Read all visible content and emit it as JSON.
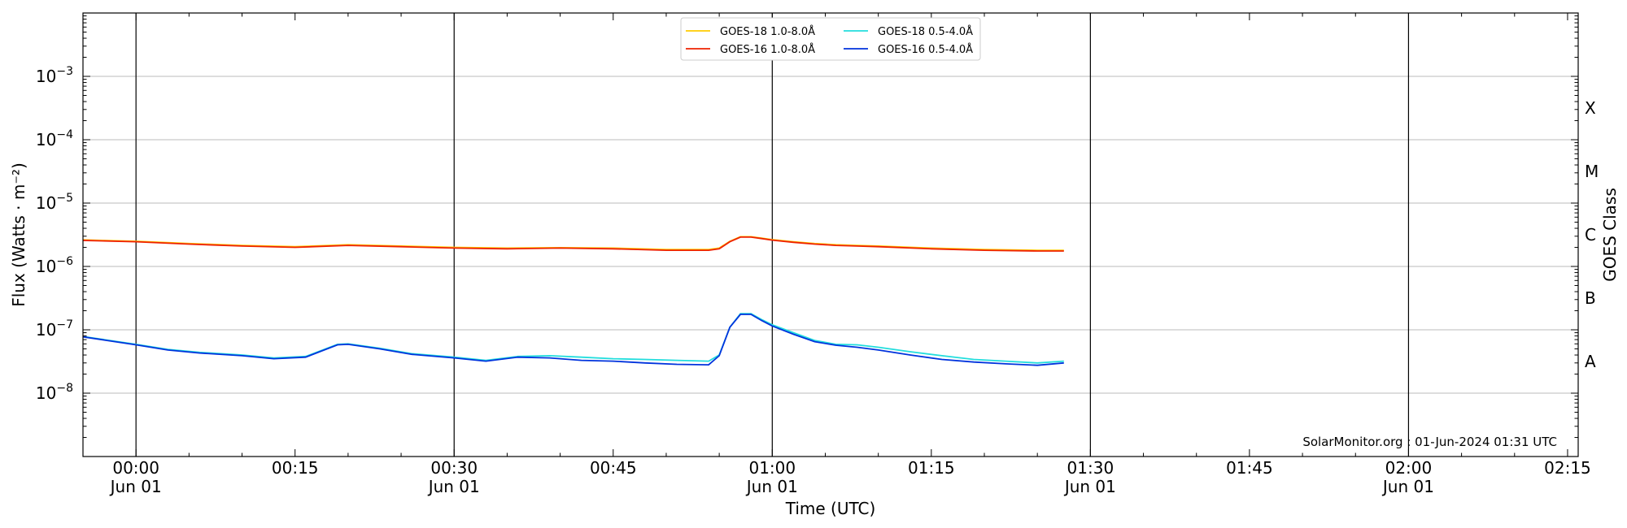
{
  "chart_data": {
    "type": "line",
    "title": "",
    "xlabel": "Time (UTC)",
    "ylabel": "Flux (Watts · m⁻²)",
    "y2label": "GOES Class",
    "y_scale": "log",
    "ylim": [
      1e-09,
      0.01
    ],
    "xlim": [
      "2024-06-01 23:55 (May 31)",
      "2024-06-01 02:16"
    ],
    "xlim_minutes": [
      -5,
      136
    ],
    "grid": "horizontal at decades",
    "legend_position": "top-center",
    "x_ticks": [
      {
        "t": 0,
        "time": "00:00",
        "date": "Jun 01"
      },
      {
        "t": 15,
        "time": "00:15",
        "date": ""
      },
      {
        "t": 30,
        "time": "00:30",
        "date": "Jun 01"
      },
      {
        "t": 45,
        "time": "00:45",
        "date": ""
      },
      {
        "t": 60,
        "time": "01:00",
        "date": "Jun 01"
      },
      {
        "t": 75,
        "time": "01:15",
        "date": ""
      },
      {
        "t": 90,
        "time": "01:30",
        "date": "Jun 01"
      },
      {
        "t": 105,
        "time": "01:45",
        "date": ""
      },
      {
        "t": 120,
        "time": "02:00",
        "date": "Jun 01"
      },
      {
        "t": 135,
        "time": "02:15",
        "date": ""
      }
    ],
    "vlines_minutes": [
      0,
      30,
      60,
      90,
      120
    ],
    "y_ticks": [
      {
        "exp": -8,
        "base": "10",
        "sup": "−8"
      },
      {
        "exp": -7,
        "base": "10",
        "sup": "−7"
      },
      {
        "exp": -6,
        "base": "10",
        "sup": "−6"
      },
      {
        "exp": -5,
        "base": "10",
        "sup": "−5"
      },
      {
        "exp": -4,
        "base": "10",
        "sup": "−4"
      },
      {
        "exp": -3,
        "base": "10",
        "sup": "−3"
      }
    ],
    "goes_classes": [
      {
        "label": "A",
        "exp": -7.5
      },
      {
        "label": "B",
        "exp": -6.5
      },
      {
        "label": "C",
        "exp": -5.5
      },
      {
        "label": "M",
        "exp": -4.5
      },
      {
        "label": "X",
        "exp": -3.5
      }
    ],
    "watermark": "SolarMonitor.org : 01-Jun-2024 01:31 UTC",
    "series": [
      {
        "name": "GOES-18 1.0-8.0Å",
        "color": "#ffcc00",
        "x": [
          -6,
          0,
          5,
          10,
          15,
          20,
          25,
          30,
          35,
          40,
          45,
          50,
          54,
          55,
          56,
          57,
          58,
          59,
          60,
          62,
          64,
          66,
          68,
          70,
          75,
          80,
          85,
          87.5
        ],
        "y": [
          2.65e-06,
          2.5e-06,
          2.3e-06,
          2.15e-06,
          2.05e-06,
          2.2e-06,
          2.1e-06,
          2e-06,
          1.95e-06,
          1.98e-06,
          1.95e-06,
          1.85e-06,
          1.85e-06,
          1.95e-06,
          2.5e-06,
          2.95e-06,
          2.95e-06,
          2.8e-06,
          2.65e-06,
          2.45e-06,
          2.3e-06,
          2.2e-06,
          2.15e-06,
          2.1e-06,
          1.95e-06,
          1.85e-06,
          1.8e-06,
          1.8e-06
        ]
      },
      {
        "name": "GOES-16 1.0-8.0Å",
        "color": "#ee2200",
        "x": [
          -6,
          0,
          5,
          10,
          15,
          20,
          25,
          30,
          35,
          40,
          45,
          50,
          54,
          55,
          56,
          57,
          58,
          59,
          60,
          62,
          64,
          66,
          68,
          70,
          75,
          80,
          85,
          87.5
        ],
        "y": [
          2.6e-06,
          2.45e-06,
          2.25e-06,
          2.1e-06,
          2e-06,
          2.15e-06,
          2.05e-06,
          1.95e-06,
          1.9e-06,
          1.95e-06,
          1.9e-06,
          1.8e-06,
          1.8e-06,
          1.9e-06,
          2.45e-06,
          2.9e-06,
          2.9e-06,
          2.75e-06,
          2.6e-06,
          2.4e-06,
          2.25e-06,
          2.15e-06,
          2.1e-06,
          2.05e-06,
          1.9e-06,
          1.8e-06,
          1.75e-06,
          1.75e-06
        ]
      },
      {
        "name": "GOES-18 0.5-4.0Å",
        "color": "#22dddd",
        "x": [
          -6,
          -3,
          0,
          3,
          6,
          10,
          13,
          16,
          19,
          20,
          23,
          26,
          30,
          33,
          36,
          39,
          42,
          45,
          48,
          51,
          54,
          55,
          56,
          57,
          58,
          59,
          60,
          62,
          64,
          66,
          68,
          70,
          73,
          76,
          79,
          82,
          85,
          87.5
        ],
        "y": [
          8.3e-08,
          7e-08,
          5.9e-08,
          4.9e-08,
          4.4e-08,
          4e-08,
          3.6e-08,
          3.8e-08,
          5.9e-08,
          6e-08,
          5.1e-08,
          4.2e-08,
          3.7e-08,
          3.3e-08,
          3.8e-08,
          3.9e-08,
          3.7e-08,
          3.5e-08,
          3.4e-08,
          3.3e-08,
          3.2e-08,
          4e-08,
          1.1e-07,
          1.8e-07,
          1.8e-07,
          1.45e-07,
          1.2e-07,
          9e-08,
          6.8e-08,
          5.9e-08,
          5.8e-08,
          5.3e-08,
          4.5e-08,
          3.9e-08,
          3.4e-08,
          3.2e-08,
          3e-08,
          3.2e-08
        ]
      },
      {
        "name": "GOES-16 0.5-4.0Å",
        "color": "#0033dd",
        "x": [
          -6,
          -3,
          0,
          3,
          6,
          10,
          13,
          16,
          19,
          20,
          23,
          26,
          30,
          33,
          36,
          39,
          42,
          45,
          48,
          51,
          54,
          55,
          56,
          57,
          58,
          59,
          60,
          62,
          64,
          66,
          68,
          70,
          73,
          76,
          79,
          82,
          85,
          87.5
        ],
        "y": [
          8.2e-08,
          6.9e-08,
          5.8e-08,
          4.8e-08,
          4.3e-08,
          3.9e-08,
          3.5e-08,
          3.7e-08,
          5.8e-08,
          5.9e-08,
          5e-08,
          4.1e-08,
          3.6e-08,
          3.2e-08,
          3.7e-08,
          3.6e-08,
          3.3e-08,
          3.2e-08,
          3e-08,
          2.85e-08,
          2.8e-08,
          3.9e-08,
          1.1e-07,
          1.75e-07,
          1.75e-07,
          1.4e-07,
          1.15e-07,
          8.5e-08,
          6.5e-08,
          5.7e-08,
          5.3e-08,
          4.8e-08,
          4e-08,
          3.4e-08,
          3.1e-08,
          2.9e-08,
          2.75e-08,
          3e-08
        ]
      }
    ]
  }
}
